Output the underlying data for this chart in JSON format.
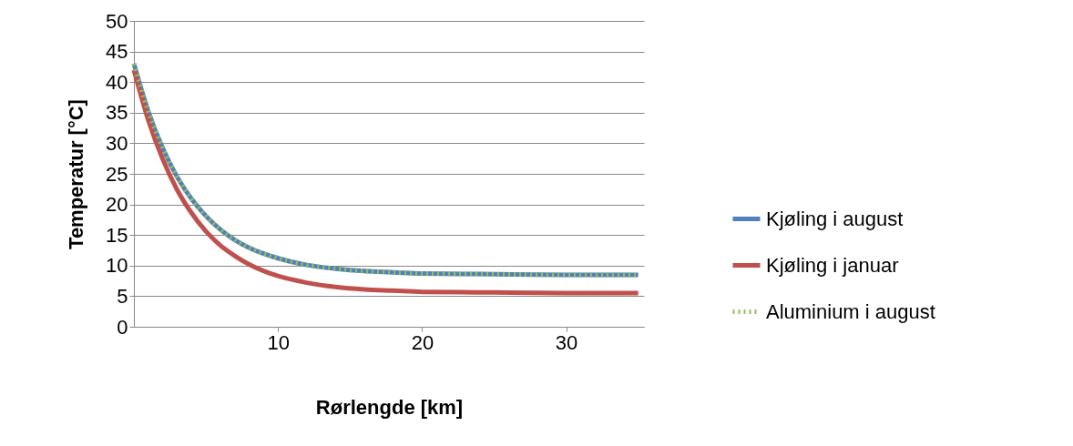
{
  "chart_data": {
    "type": "line",
    "xlabel": "Rørlengde [km]",
    "ylabel": "Temperatur [°C]",
    "x": [
      0,
      1,
      2,
      3,
      4,
      5,
      6,
      7,
      8,
      10,
      12,
      14,
      16,
      18,
      20,
      25,
      30,
      35
    ],
    "series": [
      {
        "name": "Kjøling i august",
        "color": "#4f81bd",
        "values": [
          43,
          35.2,
          29.2,
          24.5,
          20.9,
          18.1,
          15.9,
          14.2,
          12.9,
          11.2,
          10.1,
          9.5,
          9.1,
          8.9,
          8.7,
          8.6,
          8.5,
          8.5
        ]
      },
      {
        "name": "Kjøling i januar",
        "color": "#c0504d",
        "values": [
          42,
          33.8,
          27.4,
          22.4,
          18.6,
          15.6,
          13.3,
          11.6,
          10.2,
          8.3,
          7.2,
          6.5,
          6.1,
          5.9,
          5.7,
          5.6,
          5.5,
          5.5
        ]
      },
      {
        "name": "Aluminium i august",
        "color": "#9bbb59",
        "line_style": "dotted",
        "values": [
          43,
          35.2,
          29.2,
          24.5,
          20.9,
          18.1,
          15.9,
          14.2,
          12.9,
          11.2,
          10.1,
          9.5,
          9.1,
          8.9,
          8.7,
          8.6,
          8.5,
          8.5
        ]
      }
    ],
    "xlim": [
      0,
      35.4
    ],
    "xticks": [
      10,
      20,
      30
    ],
    "ylim": [
      0,
      50
    ],
    "yticks": [
      0,
      5,
      10,
      15,
      20,
      25,
      30,
      35,
      40,
      45,
      50
    ],
    "grid": "y",
    "legend": "right",
    "marker": "none",
    "line_style": "solid"
  }
}
